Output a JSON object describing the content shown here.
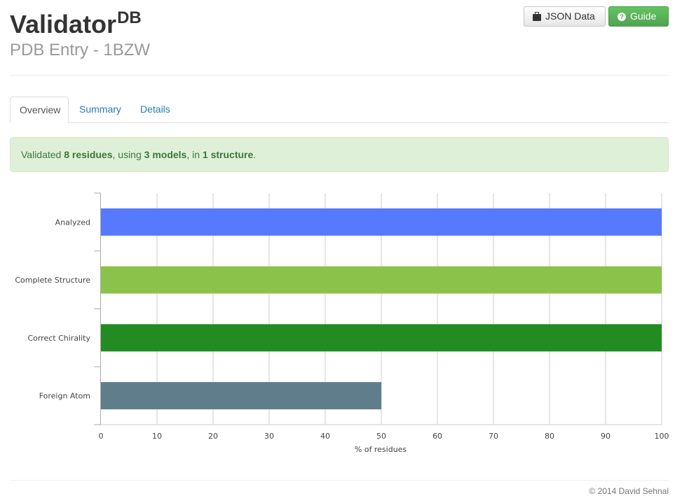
{
  "header": {
    "brand": "Validator",
    "brand_sup": "DB",
    "subtitle": "PDB Entry - 1BZW",
    "json_button": "JSON Data",
    "json_icon": "briefcase-icon",
    "guide_button": "Guide",
    "guide_icon": "question-circle-icon"
  },
  "tabs": [
    {
      "label": "Overview",
      "active": true
    },
    {
      "label": "Summary",
      "active": false
    },
    {
      "label": "Details",
      "active": false
    }
  ],
  "alert": {
    "prefix": "Validated ",
    "residues": "8 residues",
    "mid1": ", using ",
    "models": "3 models",
    "mid2": ", in ",
    "structures": "1 structure",
    "suffix": "."
  },
  "chart_data": {
    "type": "bar",
    "orientation": "horizontal",
    "categories": [
      "Analyzed",
      "Complete Structure",
      "Correct Chirality",
      "Foreign Atom"
    ],
    "values": [
      100,
      100,
      100,
      50
    ],
    "colors": [
      "#5679fe",
      "#8bc34a",
      "#228b22",
      "#607d8b"
    ],
    "xlabel": "% of residues",
    "ylabel": "",
    "xlim": [
      0,
      100
    ],
    "xticks": [
      0,
      10,
      20,
      30,
      40,
      50,
      60,
      70,
      80,
      90,
      100
    ],
    "grid": true
  },
  "footer": {
    "copyright": "© 2014 David Sehnal"
  }
}
